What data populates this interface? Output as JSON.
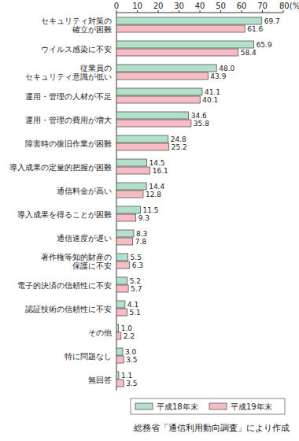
{
  "chart_data": {
    "type": "bar",
    "orientation": "horizontal",
    "grid": false,
    "data_labels": true,
    "legend": "bottom",
    "source": "総務省「通信利用動向調査」により作成",
    "categories": [
      "セキュリティ対策の\n確立が困難",
      "ウイルス感染に不安",
      "従業員の\nセキュリティ意識が低い",
      "運用・管理の人材が不足",
      "運用・管理の費用が増大",
      "障害時の復旧作業が困難",
      "導入成果の定量的把握が困難",
      "通信料金が高い",
      "導入成果を得ることが困難",
      "通信速度が遅い",
      "著作権等知的財産の\n保護に不安",
      "電子的決済の信頼性に不安",
      "認証技術の信頼性に不安",
      "その他",
      "特に問題なし",
      "無回答"
    ],
    "series": [
      {
        "name": "平成18年末",
        "color": "#b2e0c8",
        "values": [
          69.7,
          65.9,
          48.0,
          41.1,
          34.6,
          24.8,
          14.5,
          14.4,
          11.5,
          8.3,
          5.5,
          5.2,
          4.1,
          1.0,
          3.0,
          1.1
        ],
        "value_labels": [
          "69.7",
          "65.9",
          "48.0",
          "41.1",
          "34.6",
          "24.8",
          "14.5",
          "14.4",
          "11.5",
          "8.3",
          "5.5",
          "5.2",
          "4.1",
          "1.0",
          "3.0",
          "1.1"
        ]
      },
      {
        "name": "平成19年末",
        "color": "#f7bcc4",
        "values": [
          61.6,
          58.4,
          43.9,
          40.1,
          35.8,
          25.2,
          16.1,
          12.8,
          9.3,
          7.8,
          6.3,
          5.7,
          5.1,
          2.2,
          3.5,
          3.5
        ],
        "value_labels": [
          "61.6",
          "58.4",
          "43.9",
          "40.1",
          "35.8",
          "25.2",
          "16.1",
          "12.8",
          "9.3",
          "7.8",
          "6.3",
          "5.7",
          "5.1",
          "2.2",
          "3.5",
          "3.5"
        ]
      }
    ],
    "xlim": [
      0,
      80
    ],
    "xticks": [
      0,
      10,
      20,
      30,
      40,
      50,
      60,
      70,
      {
        "value": 80,
        "label": "80(%)"
      }
    ]
  }
}
